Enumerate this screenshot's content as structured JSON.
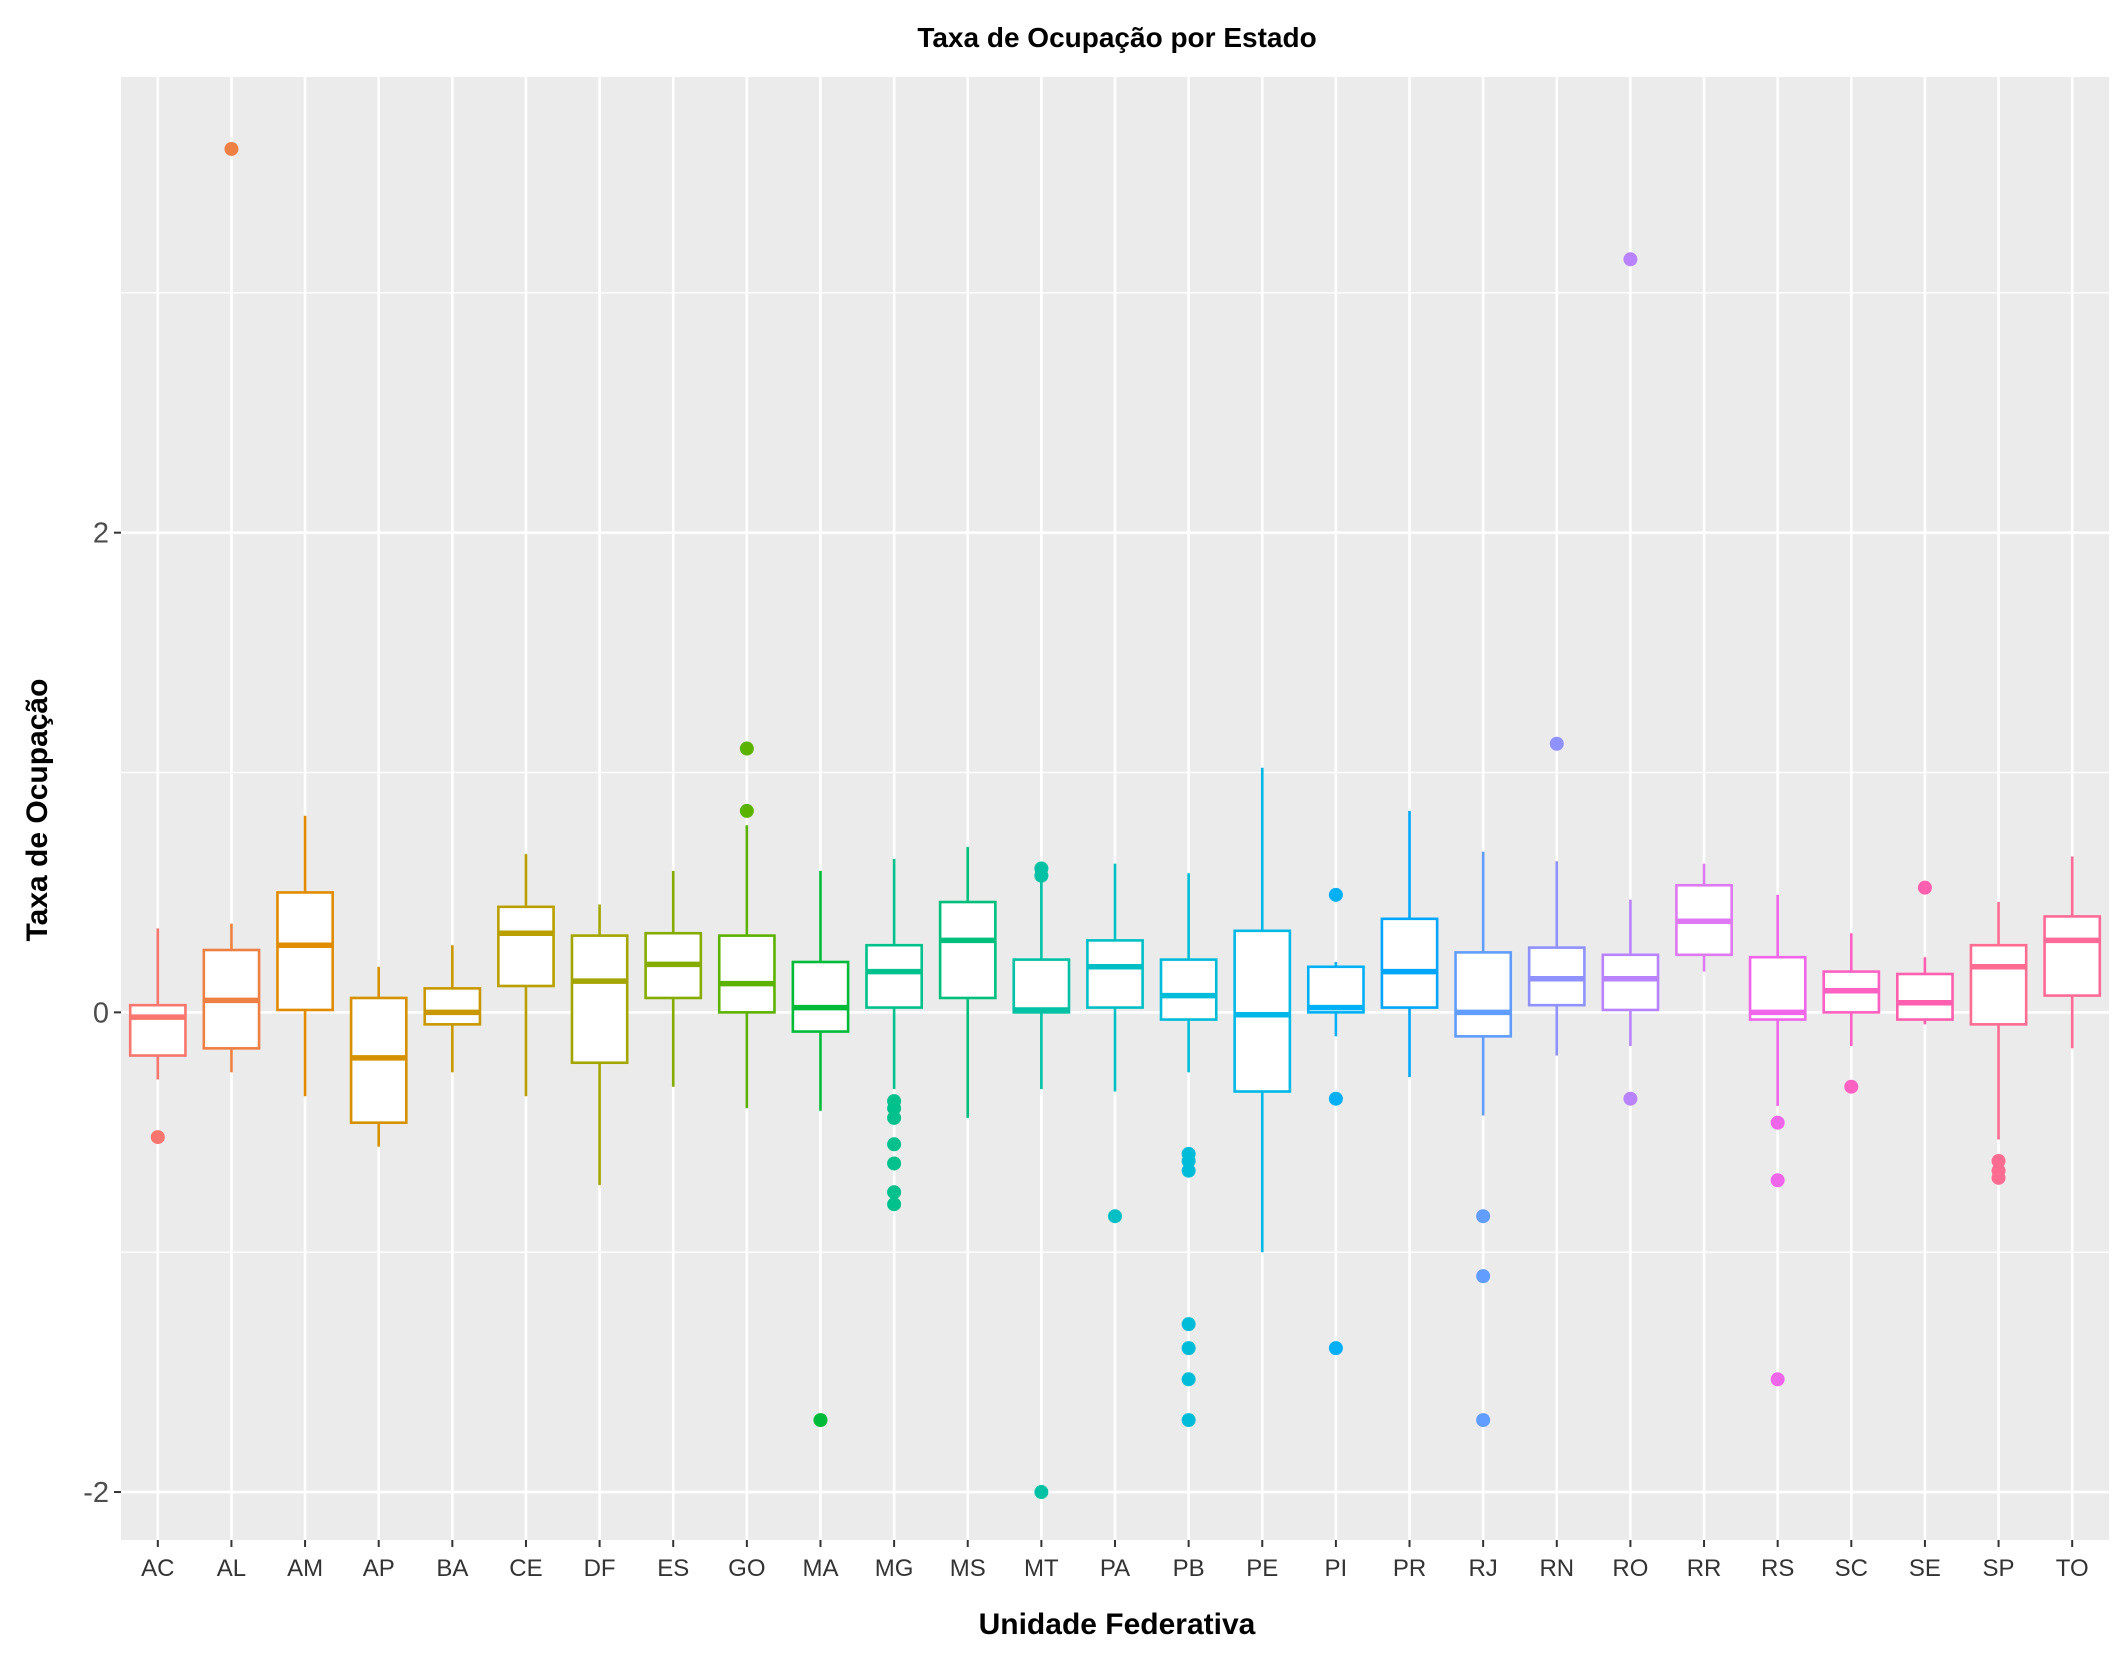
{
  "chart_data": {
    "type": "box",
    "title": "Taxa de Ocupação por Estado",
    "xlabel": "Unidade Federativa",
    "ylabel": "Taxa de Ocupação",
    "ylim": [
      -2.2,
      3.9
    ],
    "yticks": [
      -2,
      0,
      2
    ],
    "grid": true,
    "legend": "none",
    "categories": [
      "AC",
      "AL",
      "AM",
      "AP",
      "BA",
      "CE",
      "DF",
      "ES",
      "GO",
      "MA",
      "MG",
      "MS",
      "MT",
      "PA",
      "PB",
      "PE",
      "PI",
      "PR",
      "RJ",
      "RN",
      "RO",
      "RR",
      "RS",
      "SC",
      "SE",
      "SP",
      "TO"
    ],
    "colors": [
      "#F8766D",
      "#EE8044",
      "#E08B00",
      "#D59100",
      "#C99800",
      "#B9A000",
      "#A3A500",
      "#86AC00",
      "#5BB300",
      "#00BA38",
      "#00C08B",
      "#00BF7D",
      "#00C1A3",
      "#00BFC4",
      "#00BCD8",
      "#00B8E7",
      "#00B0F6",
      "#00A5FF",
      "#619CFF",
      "#8F91FF",
      "#B983FF",
      "#DE78F3",
      "#F066EA",
      "#FF61C3",
      "#FF5FAE",
      "#FF6C91",
      "#FF6A98"
    ],
    "boxes": [
      {
        "whisker_low": -0.28,
        "q1": -0.18,
        "median": -0.02,
        "q3": 0.03,
        "whisker_high": 0.35,
        "outliers": [
          -0.52
        ]
      },
      {
        "whisker_low": -0.25,
        "q1": -0.15,
        "median": 0.05,
        "q3": 0.26,
        "whisker_high": 0.37,
        "outliers": [
          3.6
        ]
      },
      {
        "whisker_low": -0.35,
        "q1": 0.01,
        "median": 0.28,
        "q3": 0.5,
        "whisker_high": 0.82,
        "outliers": []
      },
      {
        "whisker_low": -0.56,
        "q1": -0.46,
        "median": -0.19,
        "q3": 0.06,
        "whisker_high": 0.19,
        "outliers": []
      },
      {
        "whisker_low": -0.25,
        "q1": -0.05,
        "median": 0.0,
        "q3": 0.1,
        "whisker_high": 0.28,
        "outliers": []
      },
      {
        "whisker_low": -0.35,
        "q1": 0.11,
        "median": 0.33,
        "q3": 0.44,
        "whisker_high": 0.66,
        "outliers": []
      },
      {
        "whisker_low": -0.72,
        "q1": -0.21,
        "median": 0.13,
        "q3": 0.32,
        "whisker_high": 0.45,
        "outliers": []
      },
      {
        "whisker_low": -0.31,
        "q1": 0.06,
        "median": 0.2,
        "q3": 0.33,
        "whisker_high": 0.59,
        "outliers": []
      },
      {
        "whisker_low": -0.4,
        "q1": 0.0,
        "median": 0.12,
        "q3": 0.32,
        "whisker_high": 0.78,
        "outliers": [
          0.84,
          1.1
        ]
      },
      {
        "whisker_low": -0.41,
        "q1": -0.08,
        "median": 0.02,
        "q3": 0.21,
        "whisker_high": 0.59,
        "outliers": [
          -1.7
        ]
      },
      {
        "whisker_low": -0.32,
        "q1": 0.02,
        "median": 0.17,
        "q3": 0.28,
        "whisker_high": 0.64,
        "outliers": [
          -0.37,
          -0.4,
          -0.44,
          -0.55,
          -0.63,
          -0.75,
          -0.8
        ]
      },
      {
        "whisker_low": -0.44,
        "q1": 0.06,
        "median": 0.3,
        "q3": 0.46,
        "whisker_high": 0.69,
        "outliers": []
      },
      {
        "whisker_low": -0.32,
        "q1": 0.0,
        "median": 0.01,
        "q3": 0.22,
        "whisker_high": 0.55,
        "outliers": [
          -2.0,
          0.57,
          0.6
        ]
      },
      {
        "whisker_low": -0.33,
        "q1": 0.02,
        "median": 0.19,
        "q3": 0.3,
        "whisker_high": 0.62,
        "outliers": [
          -0.85
        ]
      },
      {
        "whisker_low": -0.25,
        "q1": -0.03,
        "median": 0.07,
        "q3": 0.22,
        "whisker_high": 0.58,
        "outliers": [
          -0.59,
          -0.62,
          -0.66,
          -1.3,
          -1.4,
          -1.53,
          -1.7
        ]
      },
      {
        "whisker_low": -1.0,
        "q1": -0.33,
        "median": -0.01,
        "q3": 0.34,
        "whisker_high": 1.02,
        "outliers": []
      },
      {
        "whisker_low": -0.1,
        "q1": 0.0,
        "median": 0.02,
        "q3": 0.19,
        "whisker_high": 0.21,
        "outliers": [
          0.49,
          -0.36,
          -1.4
        ]
      },
      {
        "whisker_low": -0.27,
        "q1": 0.02,
        "median": 0.17,
        "q3": 0.39,
        "whisker_high": 0.84,
        "outliers": []
      },
      {
        "whisker_low": -0.43,
        "q1": -0.1,
        "median": 0.0,
        "q3": 0.25,
        "whisker_high": 0.67,
        "outliers": [
          -0.85,
          -1.1,
          -1.7
        ]
      },
      {
        "whisker_low": -0.18,
        "q1": 0.03,
        "median": 0.14,
        "q3": 0.27,
        "whisker_high": 0.63,
        "outliers": [
          1.12
        ]
      },
      {
        "whisker_low": -0.14,
        "q1": 0.01,
        "median": 0.14,
        "q3": 0.24,
        "whisker_high": 0.47,
        "outliers": [
          -0.36,
          3.14
        ]
      },
      {
        "whisker_low": 0.17,
        "q1": 0.24,
        "median": 0.38,
        "q3": 0.53,
        "whisker_high": 0.62,
        "outliers": []
      },
      {
        "whisker_low": -0.39,
        "q1": -0.03,
        "median": 0.0,
        "q3": 0.23,
        "whisker_high": 0.49,
        "outliers": [
          -0.46,
          -0.7,
          -1.53
        ]
      },
      {
        "whisker_low": -0.14,
        "q1": 0.0,
        "median": 0.09,
        "q3": 0.17,
        "whisker_high": 0.33,
        "outliers": [
          -0.31
        ]
      },
      {
        "whisker_low": -0.05,
        "q1": -0.03,
        "median": 0.04,
        "q3": 0.16,
        "whisker_high": 0.23,
        "outliers": [
          0.52
        ]
      },
      {
        "whisker_low": -0.53,
        "q1": -0.05,
        "median": 0.19,
        "q3": 0.28,
        "whisker_high": 0.46,
        "outliers": [
          -0.62,
          -0.66,
          -0.69
        ]
      },
      {
        "whisker_low": -0.15,
        "q1": 0.07,
        "median": 0.3,
        "q3": 0.4,
        "whisker_high": 0.65,
        "outliers": []
      }
    ]
  }
}
